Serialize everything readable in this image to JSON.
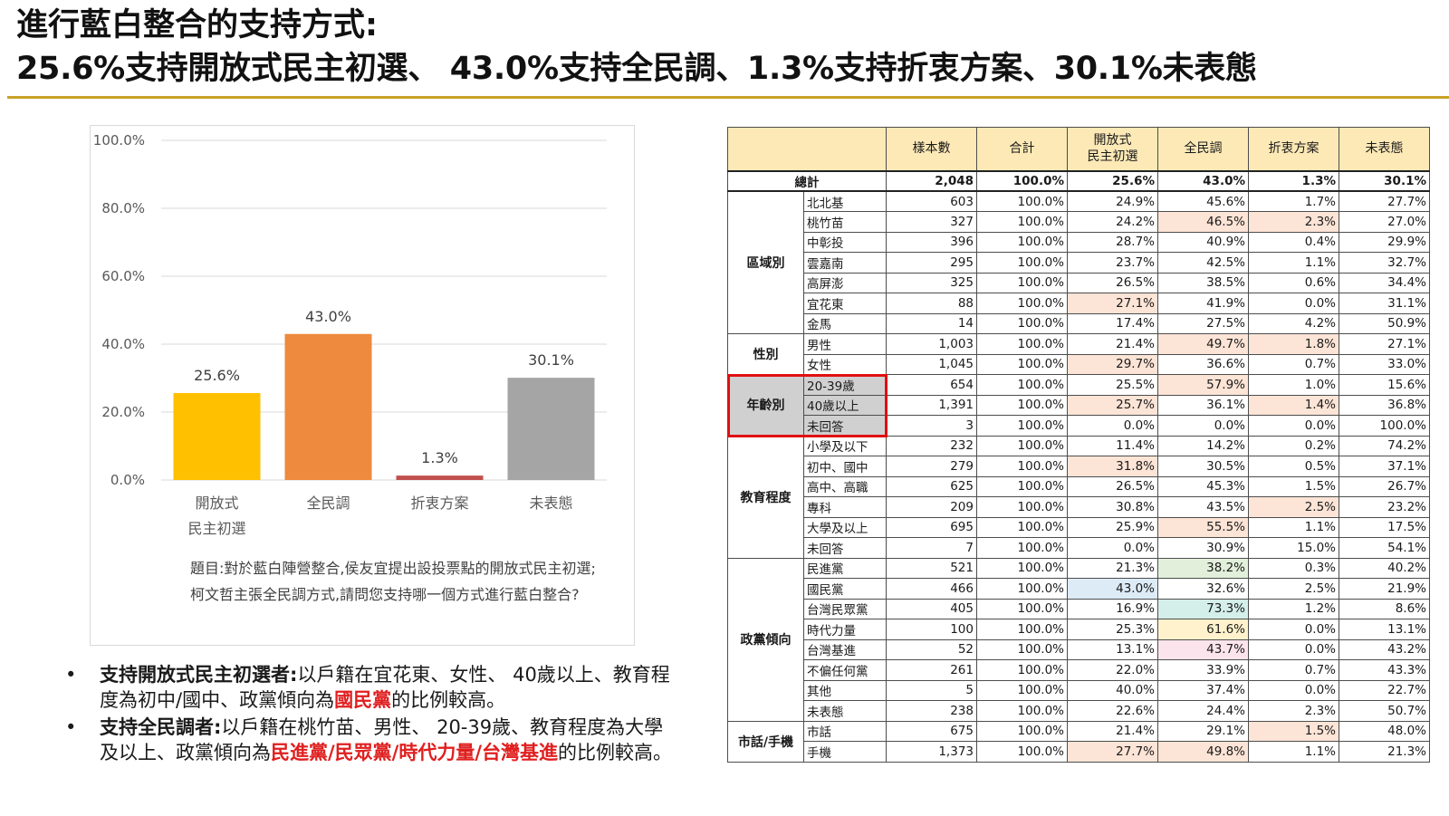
{
  "title": {
    "line1": "進行藍白整合的支持方式:",
    "line2": "25.6%支持開放式民主初選、 43.0%支持全民調、1.3%支持折衷方案、30.1%未表態"
  },
  "colors": {
    "title_rule": "#c9a227",
    "bar_open_primary": "#ffc000",
    "bar_poll": "#ed8a3e",
    "bar_compromise": "#c0504d",
    "bar_undecided": "#a5a5a5",
    "highlight_red": "#e01f1f",
    "header_fill": "#fde9b6",
    "cell_pink": "#fce4d6",
    "cell_green": "#e2efda",
    "cell_blue": "#ddebf7",
    "cell_teal": "#d4eee9",
    "cell_yellow": "#fff2cc",
    "cell_rose": "#fce4ec"
  },
  "chart_data": {
    "type": "bar",
    "categories": [
      "開放式\n民主初選",
      "全民調",
      "折衷方案",
      "未表態"
    ],
    "values": [
      25.6,
      43.0,
      1.3,
      30.1
    ],
    "value_labels": [
      "25.6%",
      "43.0%",
      "1.3%",
      "30.1%"
    ],
    "ylim": [
      0,
      100
    ],
    "yticks": [
      "0.0%",
      "20.0%",
      "40.0%",
      "60.0%",
      "80.0%",
      "100.0%"
    ],
    "ytick_values": [
      0,
      20,
      40,
      60,
      80,
      100
    ],
    "grid": true,
    "question": "題目:對於藍白陣營整合,侯友宜提出設投票點的開放式民主初選;柯文哲主張全民調方式,請問您支持哪一個方式進行藍白整合?"
  },
  "bullets": [
    {
      "lead": "支持開放式民主初選者:",
      "text_a": "以戶籍在宜花東、女性、 40歲以上、教育程度為初中/國中、政黨傾向為",
      "red": "國民黨",
      "text_b": "的比例較高。"
    },
    {
      "lead": "支持全民調者:",
      "text_a": "以戶籍在桃竹苗、男性、 20-39歲、教育程度為大學及以上、政黨傾向為",
      "red": "民進黨/民眾黨/時代力量/台灣基進",
      "text_b": "的比例較高。"
    }
  ],
  "table": {
    "headers": [
      "樣本數",
      "合計",
      "開放式\n民主初選",
      "全民調",
      "折衷方案",
      "未表態"
    ],
    "total": {
      "label": "總計",
      "values": [
        "2,048",
        "100.0%",
        "25.6%",
        "43.0%",
        "1.3%",
        "30.1%"
      ]
    },
    "groups": [
      {
        "name": "區域別",
        "rows": [
          {
            "label": "北北基",
            "values": [
              "603",
              "100.0%",
              "24.9%",
              "45.6%",
              "1.7%",
              "27.7%"
            ]
          },
          {
            "label": "桃竹苗",
            "values": [
              "327",
              "100.0%",
              "24.2%",
              "46.5%",
              "2.3%",
              "27.0%"
            ]
          },
          {
            "label": "中彰投",
            "values": [
              "396",
              "100.0%",
              "28.7%",
              "40.9%",
              "0.4%",
              "29.9%"
            ]
          },
          {
            "label": "雲嘉南",
            "values": [
              "295",
              "100.0%",
              "23.7%",
              "42.5%",
              "1.1%",
              "32.7%"
            ]
          },
          {
            "label": "高屏澎",
            "values": [
              "325",
              "100.0%",
              "26.5%",
              "38.5%",
              "0.6%",
              "34.4%"
            ]
          },
          {
            "label": "宜花東",
            "values": [
              "88",
              "100.0%",
              "27.1%",
              "41.9%",
              "0.0%",
              "31.1%"
            ]
          },
          {
            "label": "金馬",
            "values": [
              "14",
              "100.0%",
              "17.4%",
              "27.5%",
              "4.2%",
              "50.9%"
            ]
          }
        ]
      },
      {
        "name": "性別",
        "rows": [
          {
            "label": "男性",
            "values": [
              "1,003",
              "100.0%",
              "21.4%",
              "49.7%",
              "1.8%",
              "27.1%"
            ]
          },
          {
            "label": "女性",
            "values": [
              "1,045",
              "100.0%",
              "29.7%",
              "36.6%",
              "0.7%",
              "33.0%"
            ]
          }
        ]
      },
      {
        "name": "年齡別",
        "rows": [
          {
            "label": "20-39歲",
            "values": [
              "654",
              "100.0%",
              "25.5%",
              "57.9%",
              "1.0%",
              "15.6%"
            ]
          },
          {
            "label": "40歲以上",
            "values": [
              "1,391",
              "100.0%",
              "25.7%",
              "36.1%",
              "1.4%",
              "36.8%"
            ]
          },
          {
            "label": "未回答",
            "values": [
              "3",
              "100.0%",
              "0.0%",
              "0.0%",
              "0.0%",
              "100.0%"
            ]
          }
        ]
      },
      {
        "name": "教育程度",
        "rows": [
          {
            "label": "小學及以下",
            "values": [
              "232",
              "100.0%",
              "11.4%",
              "14.2%",
              "0.2%",
              "74.2%"
            ]
          },
          {
            "label": "初中、國中",
            "values": [
              "279",
              "100.0%",
              "31.8%",
              "30.5%",
              "0.5%",
              "37.1%"
            ]
          },
          {
            "label": "高中、高職",
            "values": [
              "625",
              "100.0%",
              "26.5%",
              "45.3%",
              "1.5%",
              "26.7%"
            ]
          },
          {
            "label": "專科",
            "values": [
              "209",
              "100.0%",
              "30.8%",
              "43.5%",
              "2.5%",
              "23.2%"
            ]
          },
          {
            "label": "大學及以上",
            "values": [
              "695",
              "100.0%",
              "25.9%",
              "55.5%",
              "1.1%",
              "17.5%"
            ]
          },
          {
            "label": "未回答",
            "values": [
              "7",
              "100.0%",
              "0.0%",
              "30.9%",
              "15.0%",
              "54.1%"
            ]
          }
        ]
      },
      {
        "name": "政黨傾向",
        "rows": [
          {
            "label": "民進黨",
            "values": [
              "521",
              "100.0%",
              "21.3%",
              "38.2%",
              "0.3%",
              "40.2%"
            ]
          },
          {
            "label": "國民黨",
            "values": [
              "466",
              "100.0%",
              "43.0%",
              "32.6%",
              "2.5%",
              "21.9%"
            ]
          },
          {
            "label": "台灣民眾黨",
            "values": [
              "405",
              "100.0%",
              "16.9%",
              "73.3%",
              "1.2%",
              "8.6%"
            ]
          },
          {
            "label": "時代力量",
            "values": [
              "100",
              "100.0%",
              "25.3%",
              "61.6%",
              "0.0%",
              "13.1%"
            ]
          },
          {
            "label": "台灣基進",
            "values": [
              "52",
              "100.0%",
              "13.1%",
              "43.7%",
              "0.0%",
              "43.2%"
            ]
          },
          {
            "label": "不偏任何黨",
            "values": [
              "261",
              "100.0%",
              "22.0%",
              "33.9%",
              "0.7%",
              "43.3%"
            ]
          },
          {
            "label": "其他",
            "values": [
              "5",
              "100.0%",
              "40.0%",
              "37.4%",
              "0.0%",
              "22.7%"
            ]
          },
          {
            "label": "未表態",
            "values": [
              "238",
              "100.0%",
              "22.6%",
              "24.4%",
              "2.3%",
              "50.7%"
            ]
          }
        ]
      },
      {
        "name": "市話/手機",
        "rows": [
          {
            "label": "市話",
            "values": [
              "675",
              "100.0%",
              "21.4%",
              "29.1%",
              "1.5%",
              "48.0%"
            ]
          },
          {
            "label": "手機",
            "values": [
              "1,373",
              "100.0%",
              "27.7%",
              "49.8%",
              "1.1%",
              "21.3%"
            ]
          }
        ]
      }
    ],
    "highlighted_cells": [
      {
        "row": "桃竹苗",
        "col": 3,
        "color": "cell_pink"
      },
      {
        "row": "桃竹苗",
        "col": 4,
        "color": "cell_pink"
      },
      {
        "row": "宜花東",
        "col": 2,
        "color": "cell_pink"
      },
      {
        "row": "男性",
        "col": 3,
        "color": "cell_pink"
      },
      {
        "row": "男性",
        "col": 4,
        "color": "cell_pink"
      },
      {
        "row": "女性",
        "col": 2,
        "color": "cell_pink"
      },
      {
        "row": "20-39歲",
        "col": 3,
        "color": "cell_pink"
      },
      {
        "row": "40歲以上",
        "col": 2,
        "color": "cell_pink"
      },
      {
        "row": "40歲以上",
        "col": 4,
        "color": "cell_pink"
      },
      {
        "row": "初中、國中",
        "col": 2,
        "color": "cell_pink"
      },
      {
        "row": "專科",
        "col": 4,
        "color": "cell_pink"
      },
      {
        "row": "大學及以上",
        "col": 3,
        "color": "cell_pink"
      },
      {
        "row": "民進黨",
        "col": 3,
        "color": "cell_green"
      },
      {
        "row": "國民黨",
        "col": 2,
        "color": "cell_blue"
      },
      {
        "row": "台灣民眾黨",
        "col": 3,
        "color": "cell_teal"
      },
      {
        "row": "時代力量",
        "col": 3,
        "color": "cell_yellow"
      },
      {
        "row": "台灣基進",
        "col": 3,
        "color": "cell_rose"
      },
      {
        "row": "市話",
        "col": 4,
        "color": "cell_pink"
      },
      {
        "row": "手機",
        "col": 2,
        "color": "cell_pink"
      },
      {
        "row": "手機",
        "col": 3,
        "color": "cell_pink"
      }
    ],
    "highlighted_group": "年齡別"
  }
}
